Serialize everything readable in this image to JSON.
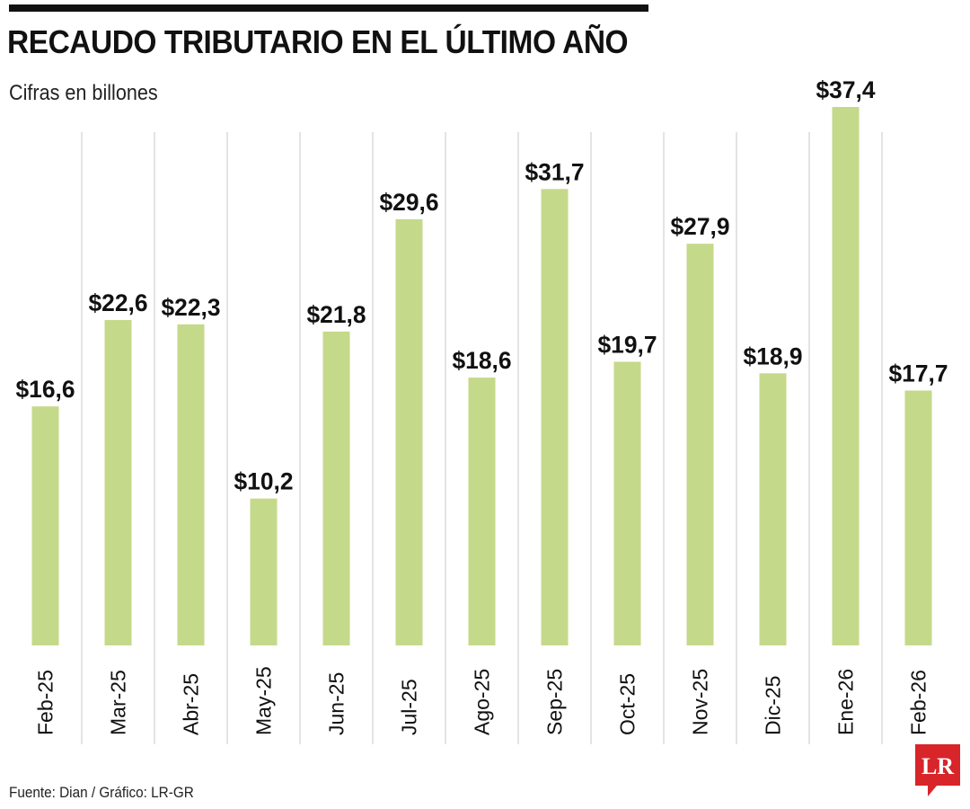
{
  "header": {
    "title": "RECAUDO TRIBUTARIO EN EL ÚLTIMO AÑO",
    "subtitle": "Cifras en billones"
  },
  "footer": {
    "source": "Fuente: Dian / Gráfico: LR-GR",
    "logo_text": "LR"
  },
  "colors": {
    "bar": "#c5d98a",
    "grid": "#c8c8c8",
    "text": "#111111",
    "logo": "#d7252a"
  },
  "chart_data": {
    "type": "bar",
    "title": "RECAUDO TRIBUTARIO EN EL ÚLTIMO AÑO",
    "subtitle": "Cifras en billones",
    "categories": [
      "Feb-25",
      "Mar-25",
      "Abr-25",
      "May-25",
      "Jun-25",
      "Jul-25",
      "Ago-25",
      "Sep-25",
      "Oct-25",
      "Nov-25",
      "Dic-25",
      "Ene-26",
      "Feb-26"
    ],
    "values": [
      16.6,
      22.6,
      22.3,
      10.2,
      21.8,
      29.6,
      18.6,
      31.7,
      19.7,
      27.9,
      18.9,
      37.4,
      17.7
    ],
    "value_labels": [
      "$16,6",
      "$22,6",
      "$22,3",
      "$10,2",
      "$21,8",
      "$29,6",
      "$18,6",
      "$31,7",
      "$19,7",
      "$27,9",
      "$18,9",
      "$37,4",
      "$17,7"
    ],
    "xlabel": "",
    "ylabel": "",
    "ylim": [
      0,
      37.4
    ],
    "grid": "vertical separators"
  }
}
